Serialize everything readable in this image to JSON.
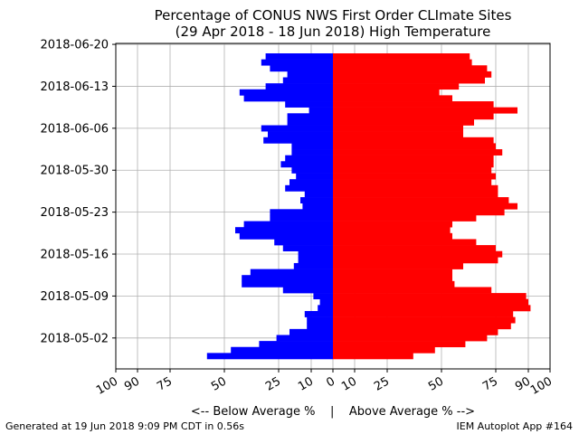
{
  "chart_data": {
    "type": "bar",
    "orientation": "horizontal",
    "title_line1": "Percentage of CONUS NWS First Order CLImate Sites",
    "title_line2": "(29 Apr 2018 - 18 Jun 2018) High Temperature",
    "xlabel": "<-- Below Average %    |    Above Average % -->",
    "xlim": [
      -100,
      100
    ],
    "x_ticks": [
      {
        "value": -100,
        "label": "100"
      },
      {
        "value": -90,
        "label": "90"
      },
      {
        "value": -75,
        "label": "75"
      },
      {
        "value": -50,
        "label": "50"
      },
      {
        "value": -25,
        "label": "25"
      },
      {
        "value": -10,
        "label": "10"
      },
      {
        "value": 0,
        "label": "0"
      },
      {
        "value": 10,
        "label": "10"
      },
      {
        "value": 25,
        "label": "25"
      },
      {
        "value": 50,
        "label": "50"
      },
      {
        "value": 75,
        "label": "75"
      },
      {
        "value": 90,
        "label": "90"
      },
      {
        "value": 100,
        "label": "100"
      }
    ],
    "y_ticks": [
      "2018-05-02",
      "2018-05-09",
      "2018-05-16",
      "2018-05-23",
      "2018-05-30",
      "2018-06-06",
      "2018-06-13",
      "2018-06-20"
    ],
    "grid": true,
    "dates": [
      "2018-04-29",
      "2018-04-30",
      "2018-05-01",
      "2018-05-02",
      "2018-05-03",
      "2018-05-04",
      "2018-05-05",
      "2018-05-06",
      "2018-05-07",
      "2018-05-08",
      "2018-05-09",
      "2018-05-10",
      "2018-05-11",
      "2018-05-12",
      "2018-05-13",
      "2018-05-14",
      "2018-05-15",
      "2018-05-16",
      "2018-05-17",
      "2018-05-18",
      "2018-05-19",
      "2018-05-20",
      "2018-05-21",
      "2018-05-22",
      "2018-05-23",
      "2018-05-24",
      "2018-05-25",
      "2018-05-26",
      "2018-05-27",
      "2018-05-28",
      "2018-05-29",
      "2018-05-30",
      "2018-05-31",
      "2018-06-01",
      "2018-06-02",
      "2018-06-03",
      "2018-06-04",
      "2018-06-05",
      "2018-06-06",
      "2018-06-07",
      "2018-06-08",
      "2018-06-09",
      "2018-06-10",
      "2018-06-11",
      "2018-06-12",
      "2018-06-13",
      "2018-06-14",
      "2018-06-15",
      "2018-06-16",
      "2018-06-17",
      "2018-06-18"
    ],
    "below_average": [
      58,
      47,
      34,
      26,
      20,
      12,
      12,
      13,
      7,
      6,
      9,
      23,
      42,
      42,
      38,
      18,
      16,
      16,
      23,
      27,
      43,
      45,
      41,
      29,
      29,
      14,
      15,
      13,
      22,
      20,
      17,
      19,
      24,
      22,
      19,
      19,
      32,
      30,
      33,
      21,
      21,
      11,
      22,
      41,
      43,
      31,
      23,
      21,
      29,
      33,
      31
    ],
    "above_average": [
      37,
      47,
      61,
      71,
      76,
      82,
      84,
      83,
      91,
      90,
      89,
      73,
      56,
      55,
      55,
      60,
      76,
      78,
      75,
      66,
      55,
      54,
      55,
      66,
      79,
      85,
      81,
      76,
      76,
      73,
      75,
      73,
      74,
      74,
      78,
      75,
      74,
      60,
      60,
      65,
      74,
      85,
      74,
      55,
      49,
      58,
      70,
      73,
      71,
      64,
      63
    ]
  },
  "colors": {
    "below": "#0000ff",
    "above": "#ff0000",
    "grid": "#b0b0b0"
  },
  "footer": {
    "left": "Generated at 19 Jun 2018 9:09 PM CDT in 0.56s",
    "right": "IEM Autoplot App #164"
  }
}
